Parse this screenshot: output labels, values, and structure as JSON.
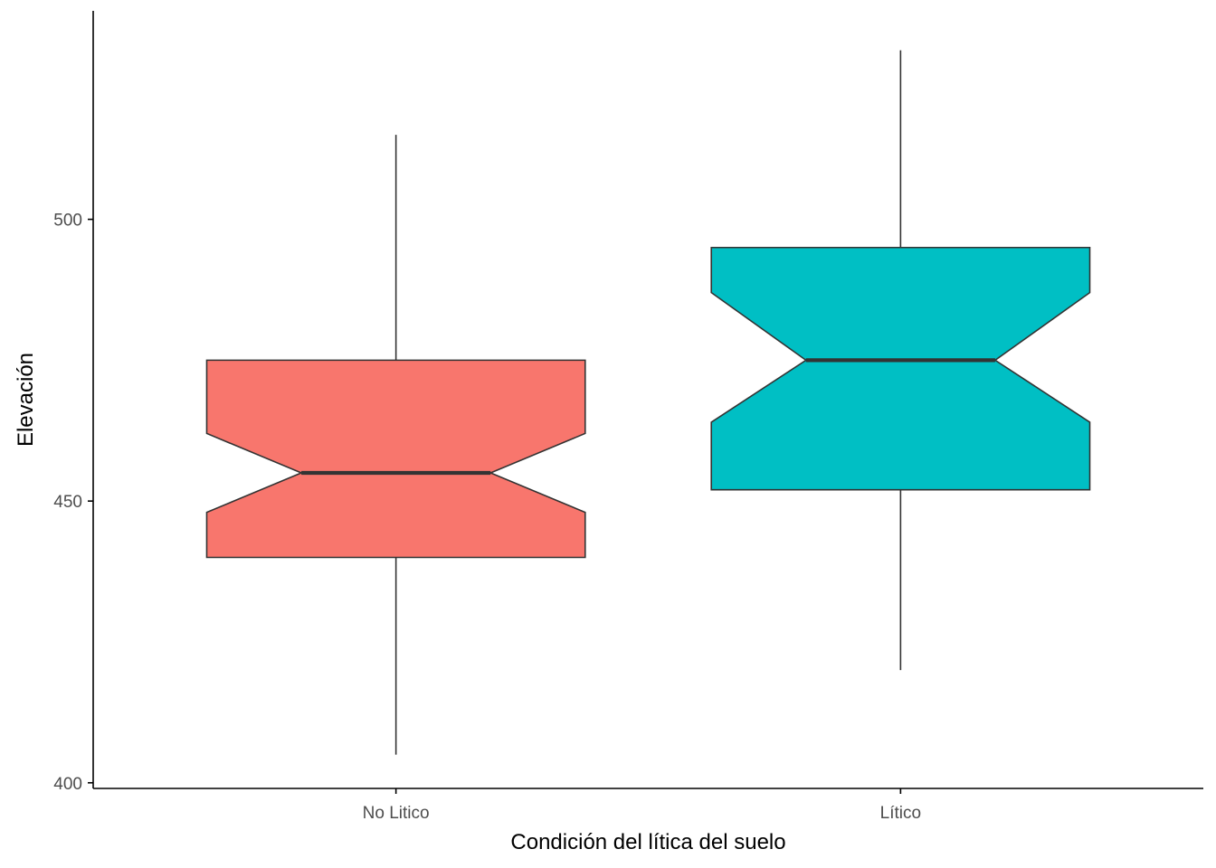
{
  "chart_data": {
    "type": "boxplot",
    "notched": true,
    "title": "",
    "xlabel": "Condición del lítica del suelo",
    "ylabel": "Elevación",
    "categories": [
      "No Litico",
      "Lítico"
    ],
    "ylim": [
      399,
      537
    ],
    "yticks": [
      400,
      450,
      500
    ],
    "grid": false,
    "legend": "none",
    "boxes": [
      {
        "category": "No Litico",
        "whisker_low": 405,
        "q1": 440,
        "median": 455,
        "q3": 475,
        "whisker_high": 515,
        "notch_low": 448,
        "notch_high": 462,
        "color": "#F8766D"
      },
      {
        "category": "Lítico",
        "whisker_low": 420,
        "q1": 452,
        "median": 475,
        "q3": 495,
        "whisker_high": 530,
        "notch_low": 464,
        "notch_high": 487,
        "color": "#00BFC4"
      }
    ]
  }
}
